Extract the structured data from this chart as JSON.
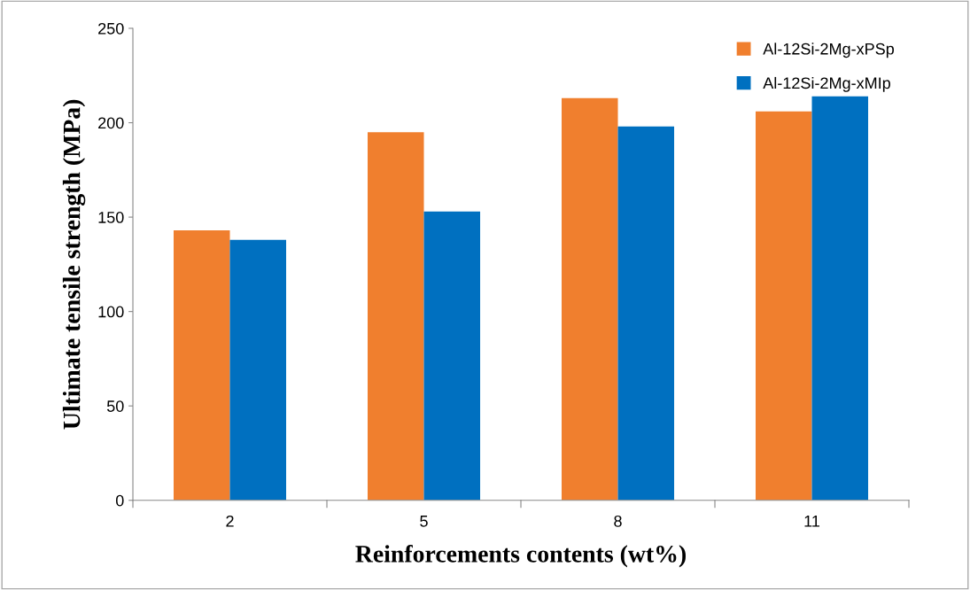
{
  "chart_data": {
    "type": "bar",
    "xlabel": "Reinforcements contents (wt%)",
    "ylabel": "Ultimate tensile strength (MPa)",
    "categories": [
      "2",
      "5",
      "8",
      "11"
    ],
    "series": [
      {
        "name": "Al-12Si-2Mg-xPSp",
        "color": "#f07f2e",
        "values": [
          143,
          195,
          213,
          206
        ]
      },
      {
        "name": "Al-12Si-2Mg-xMIp",
        "color": "#0070c0",
        "values": [
          138,
          153,
          198,
          214
        ]
      }
    ],
    "ylim": [
      0,
      250
    ],
    "yticks": [
      0,
      50,
      100,
      150,
      200,
      250
    ],
    "grid": false,
    "legend": "top right"
  }
}
